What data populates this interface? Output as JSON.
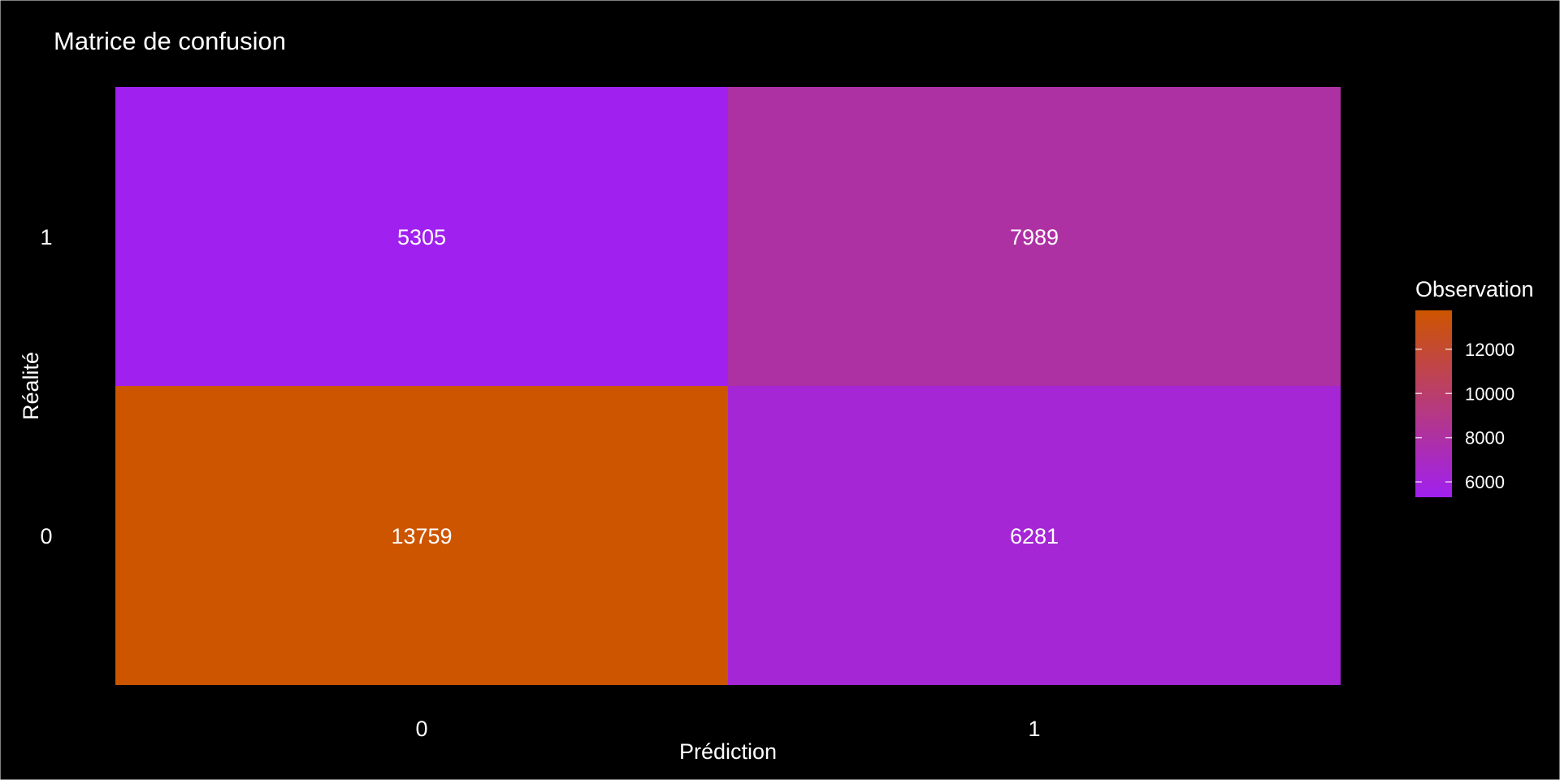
{
  "chart_data": {
    "type": "heatmap",
    "title": "Matrice de confusion",
    "xlabel": "Prédiction",
    "ylabel": "Réalité",
    "x_categories": [
      "0",
      "1"
    ],
    "y_categories": [
      "0",
      "1"
    ],
    "cells": [
      {
        "x": "0",
        "y": "1",
        "value": 5305
      },
      {
        "x": "1",
        "y": "1",
        "value": 7989
      },
      {
        "x": "0",
        "y": "0",
        "value": 13759
      },
      {
        "x": "1",
        "y": "0",
        "value": 6281
      }
    ],
    "legend": {
      "title": "Observation",
      "position": "right",
      "ticks": [
        6000,
        8000,
        10000,
        12000
      ],
      "tick_labels": [
        "6000",
        "8000",
        "10000",
        "12000"
      ],
      "range": [
        5305,
        13759
      ],
      "color_low": "#A020F0",
      "color_high": "#CD5500"
    },
    "grid": false
  }
}
